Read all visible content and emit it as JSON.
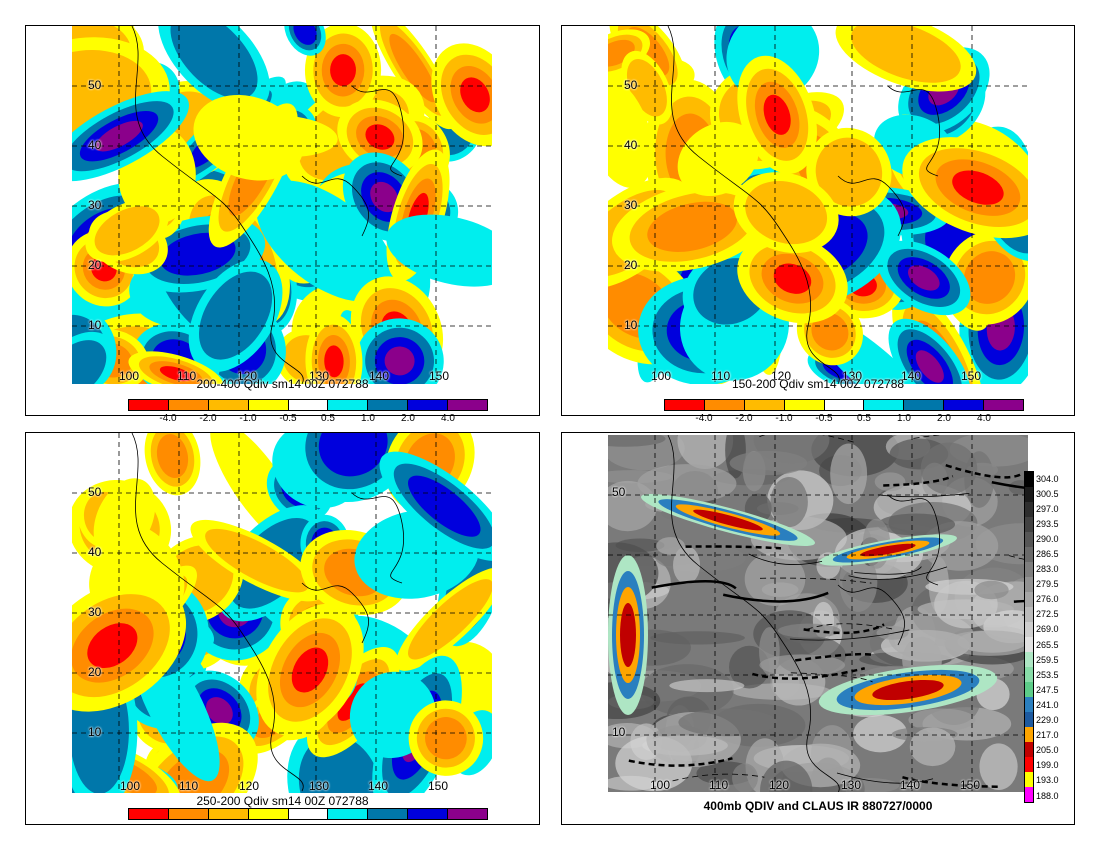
{
  "colors": {
    "div_scale": [
      "#ff0000",
      "#ff8c00",
      "#ffbb00",
      "#ffff00",
      "#ffffff",
      "#00eeee",
      "#0077aa",
      "#0000dd",
      "#8b008b"
    ],
    "ir_scale": [
      "#000000",
      "#1a1a1a",
      "#2e2e2e",
      "#424242",
      "#565656",
      "#6a6a6a",
      "#7e7e7e",
      "#929292",
      "#a6a6a6",
      "#bababa",
      "#cecece",
      "#e2e2e2",
      "#aee6c4",
      "#88dca8",
      "#5ccc88",
      "#2a7fbf",
      "#1d5aa0",
      "#ffa500",
      "#c00000",
      "#ff0000",
      "#ffff00",
      "#ff00ff",
      "#ffffff"
    ]
  },
  "lat_labels": [
    "50",
    "40",
    "30",
    "20",
    "10"
  ],
  "lon_labels": [
    "100",
    "110",
    "120",
    "130",
    "140",
    "150"
  ],
  "panels": [
    {
      "title": "200-400 Qdiv sm14 00Z 072788",
      "ticks": [
        "-4.0",
        "-2.0",
        "-1.0",
        "-0.5",
        "0.5",
        "1.0",
        "2.0",
        "4.0"
      ]
    },
    {
      "title": "150-200 Qdiv sm14 00Z 072788",
      "ticks": [
        "-4.0",
        "-2.0",
        "-1.0",
        "-0.5",
        "0.5",
        "1.0",
        "2.0",
        "4.0"
      ]
    },
    {
      "title": "250-200 Qdiv sm14 00Z 072788",
      "ticks": []
    },
    {
      "title": "400mb QDIV and CLAUS IR 880727/0000",
      "ir_labels": [
        "304.0",
        "300.5",
        "297.0",
        "293.5",
        "290.0",
        "286.5",
        "283.0",
        "279.5",
        "276.0",
        "272.5",
        "269.0",
        "265.5",
        "259.5",
        "253.5",
        "247.5",
        "241.0",
        "229.0",
        "217.0",
        "205.0",
        "199.0",
        "193.0",
        "188.0"
      ]
    }
  ]
}
